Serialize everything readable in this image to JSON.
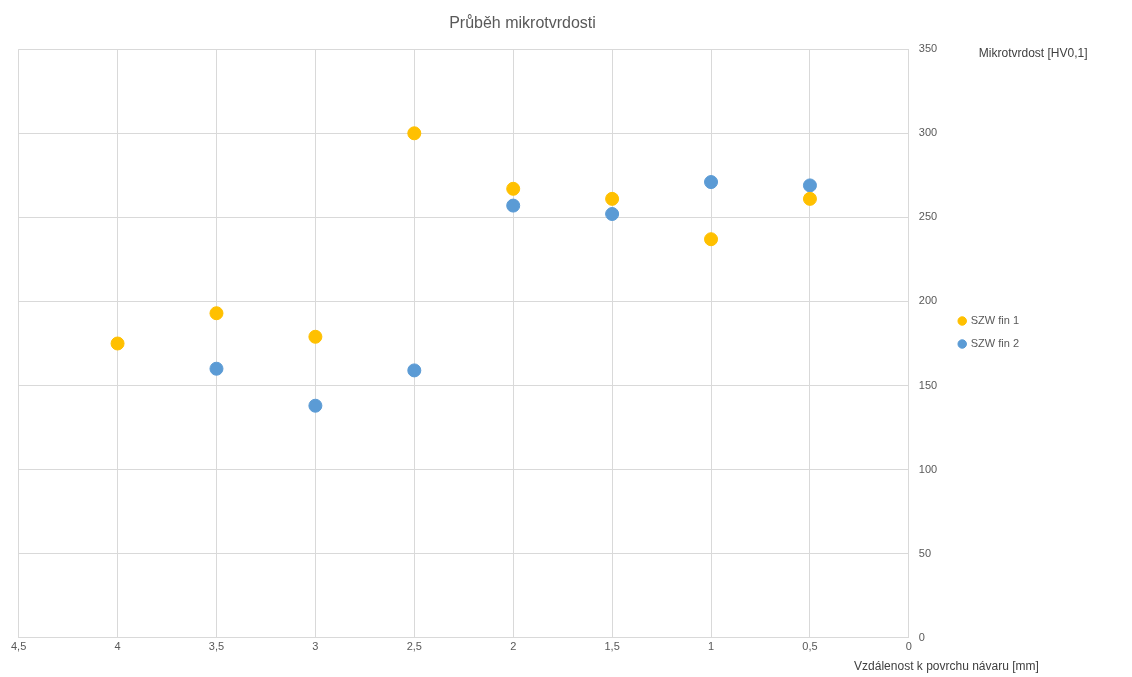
{
  "chart_data": {
    "type": "scatter",
    "title": "Průběh mikrotvrdosti",
    "xlabel": "Vzdálenost k povrchu návaru [mm]",
    "ylabel": "Mikrotvrdost [HV0,1]",
    "xlim": [
      4.5,
      0
    ],
    "xticks": [
      {
        "value": 4.5,
        "label": "4,5"
      },
      4,
      {
        "value": 3.5,
        "label": "3,5"
      },
      3,
      {
        "value": 2.5,
        "label": "2,5"
      },
      2,
      {
        "value": 1.5,
        "label": "1,5"
      },
      1,
      {
        "value": 0.5,
        "label": "0,5"
      },
      0
    ],
    "ylim": [
      0,
      350
    ],
    "yticks": [
      0,
      50,
      100,
      150,
      200,
      250,
      300,
      350
    ],
    "grid": true,
    "legend": "right",
    "marker": "circle",
    "series": [
      {
        "name": "SZW fin 1",
        "color": "#ffc000",
        "x": [
          4,
          3.5,
          3,
          2.5,
          2,
          1.5,
          1,
          0.5
        ],
        "values": [
          175,
          193,
          179,
          300,
          267,
          261,
          237,
          261
        ]
      },
      {
        "name": "SZW fin 2",
        "color": "#5b9bd5",
        "x": [
          3.5,
          3,
          2.5,
          2,
          1.5,
          1,
          0.5
        ],
        "values": [
          160,
          138,
          159,
          257,
          252,
          271,
          269
        ]
      }
    ]
  }
}
